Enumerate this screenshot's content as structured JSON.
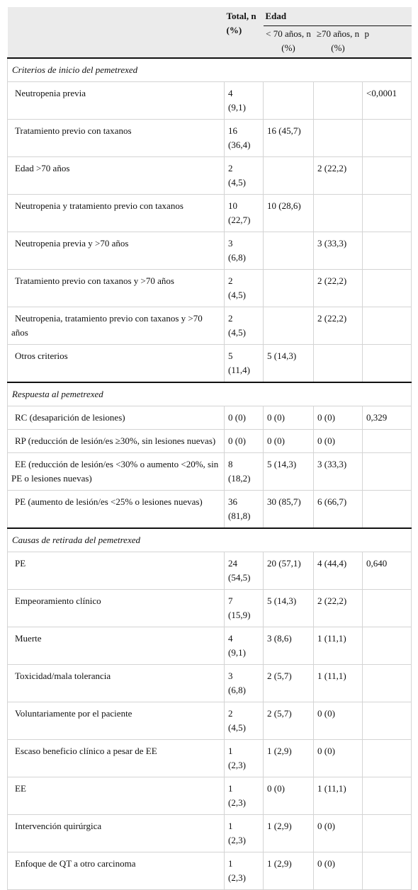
{
  "header": {
    "total": "Total, n (%)",
    "edad": "Edad",
    "lt70": "< 70 años, n (%)",
    "ge70": "≥70 años, n (%)",
    "p": "p"
  },
  "sections": [
    {
      "title": "Criterios de inicio del pemetrexed",
      "rows": [
        [
          "Neutropenia previa",
          "4 (9,1)",
          null,
          null,
          "<0,0001"
        ],
        [
          "Tratamiento previo con taxanos",
          "16 (36,4)",
          "16 (45,7)",
          null,
          null
        ],
        [
          "Edad >70 años",
          "2 (4,5)",
          null,
          "2 (22,2)",
          null
        ],
        [
          "Neutropenia y tratamiento previo con taxanos",
          "10 (22,7)",
          "10 (28,6)",
          null,
          null
        ],
        [
          "Neutropenia previa y >70 años",
          "3 (6,8)",
          null,
          "3 (33,3)",
          null
        ],
        [
          "Tratamiento previo con taxanos y >70 años",
          "2 (4,5)",
          null,
          "2 (22,2)",
          null
        ],
        [
          "Neutropenia, tratamiento previo con taxanos y >70 años",
          "2 (4,5)",
          null,
          "2 (22,2)",
          null
        ],
        [
          "Otros criterios",
          "5 (11,4)",
          "5 (14,3)",
          null,
          null
        ]
      ]
    },
    {
      "title": "Respuesta al pemetrexed",
      "rows": [
        [
          "RC (desaparición de lesiones)",
          "0 (0)",
          "0 (0)",
          "0 (0)",
          "0,329"
        ],
        [
          "RP (reducción de lesión/es ≥30%, sin lesiones nuevas)",
          "0 (0)",
          "0 (0)",
          "0 (0)",
          null
        ],
        [
          "EE (reducción de lesión/es <30% o aumento <20%, sin PE o lesiones nuevas)",
          "8 (18,2)",
          "5 (14,3)",
          "3 (33,3)",
          null
        ],
        [
          "PE (aumento de lesión/es <25% o lesiones nuevas)",
          "36 (81,8)",
          "30 (85,7)",
          "6 (66,7)",
          null
        ]
      ]
    },
    {
      "title": "Causas de retirada del pemetrexed",
      "rows": [
        [
          "PE",
          "24 (54,5)",
          "20 (57,1)",
          "4 (44,4)",
          "0,640"
        ],
        [
          "Empeoramiento clínico",
          "7 (15,9)",
          "5 (14,3)",
          "2 (22,2)",
          null
        ],
        [
          "Muerte",
          "4 (9,1)",
          "3 (8,6)",
          "1 (11,1)",
          null
        ],
        [
          "Toxicidad/mala tolerancia",
          "3 (6,8)",
          "2 (5,7)",
          "1 (11,1)",
          null
        ],
        [
          "Voluntariamente por el paciente",
          "2 (4,5)",
          "2 (5,7)",
          "0 (0)",
          null
        ],
        [
          "Escaso beneficio clínico a pesar de EE",
          "1 (2,3)",
          "1 (2,9)",
          "0 (0)",
          null
        ],
        [
          "EE",
          "1 (2,3)",
          "0 (0)",
          "1 (11,1)",
          null
        ],
        [
          "Intervención quirúrgica",
          "1 (2,3)",
          "1 (2,9)",
          "0 (0)",
          null
        ],
        [
          "Enfoque de QT a otro carcinoma",
          "1 (2,3)",
          "1 (2,9)",
          "0 (0)",
          null
        ]
      ]
    }
  ]
}
